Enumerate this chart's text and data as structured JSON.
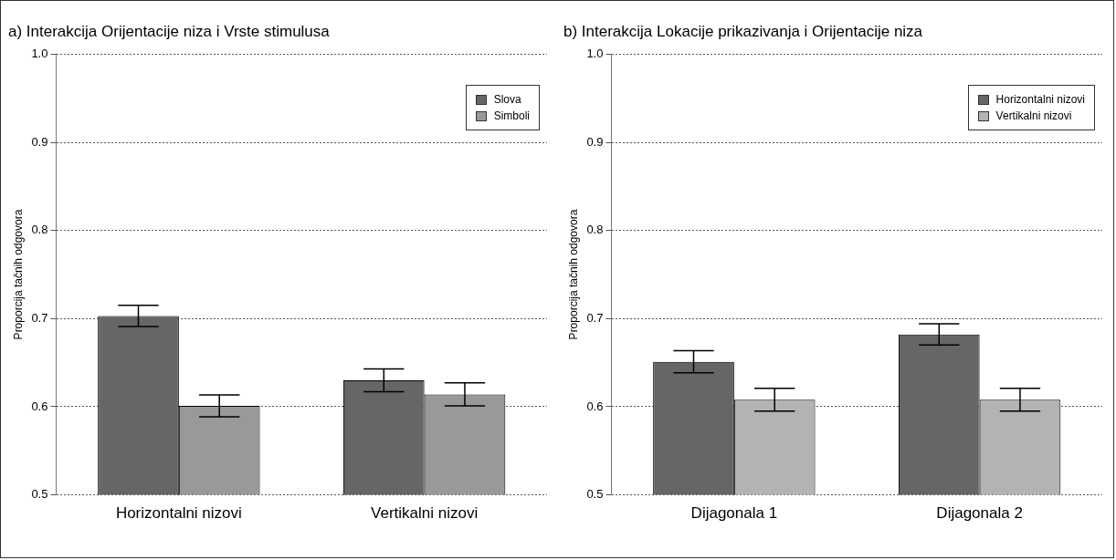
{
  "chart_data": [
    {
      "type": "bar",
      "title": "a) Interakcija Orijentacije niza i Vrste stimulusa",
      "ylabel": "Proporcija tačnih odgovora",
      "categories": [
        "Horizontalni nizovi",
        "Vertikalni nizovi"
      ],
      "series": [
        {
          "name": "Slova",
          "color": "#666666",
          "values": [
            0.703,
            0.63
          ],
          "errors": [
            0.012,
            0.013
          ]
        },
        {
          "name": "Simboli",
          "color": "#999999",
          "values": [
            0.601,
            0.614
          ],
          "errors": [
            0.0125,
            0.013
          ]
        }
      ],
      "ylim": [
        0.5,
        1.0
      ],
      "yticks": [
        {
          "value": 0.5,
          "label": "0.5"
        },
        {
          "value": 0.6,
          "label": "0.6"
        },
        {
          "value": 0.7,
          "label": "0.7"
        },
        {
          "value": 0.8,
          "label": "0.8"
        },
        {
          "value": 0.9,
          "label": "0.9"
        },
        {
          "value": 1.0,
          "label": "1.0"
        }
      ],
      "grid": "y",
      "legend": "top right"
    },
    {
      "type": "bar",
      "title": "b) Interakcija Lokacije prikazivanja i Orijentacije niza",
      "ylabel": "Proporcija tačnih odgovora",
      "categories": [
        "Dijagonala 1",
        "Dijagonala 2"
      ],
      "series": [
        {
          "name": "Horizontalni nizovi",
          "color": "#666666",
          "values": [
            0.651,
            0.682
          ],
          "errors": [
            0.0125,
            0.012
          ]
        },
        {
          "name": "Vertikalni nizovi",
          "color": "#b3b3b3",
          "values": [
            0.608,
            0.608
          ],
          "errors": [
            0.013,
            0.013
          ]
        }
      ],
      "ylim": [
        0.5,
        1.0
      ],
      "yticks": [
        {
          "value": 0.5,
          "label": "0.5"
        },
        {
          "value": 0.6,
          "label": "0.6"
        },
        {
          "value": 0.7,
          "label": "0.7"
        },
        {
          "value": 0.8,
          "label": "0.8"
        },
        {
          "value": 0.9,
          "label": "0.9"
        },
        {
          "value": 1.0,
          "label": "1.0"
        }
      ],
      "grid": "y",
      "legend": "top right"
    }
  ]
}
